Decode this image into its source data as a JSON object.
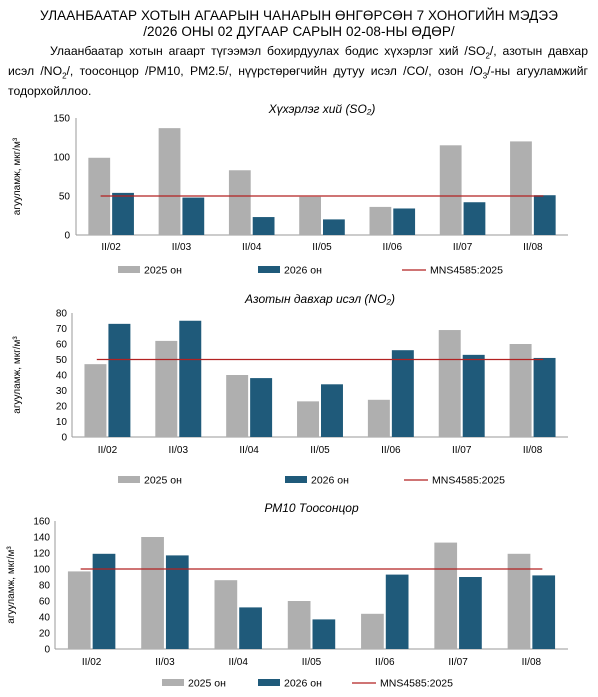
{
  "page": {
    "title_line1": "УЛААНБААТАР ХОТЫН АГААРЫН ЧАНАРЫН ӨНГӨРСӨН 7 ХОНОГИЙН МЭДЭЭ",
    "title_line2": "/2026 ОНЫ 02 ДУГААР САРЫН 02-08-НЫ ӨДӨР/",
    "intro_html": "Улаанбаатар хотын агаарт түгээмэл бохирдуулах бодис хүхэрлэг хий /SO<sub>2</sub>/, азотын давхар исэл /NO<sub>2</sub>/, тоосонцор /PM10, PM2.5/, нүүрстөрөгчийн дутуу исэл /CO/, озон /O<sub>3</sub>/-ны агууламжийг тодорхойллоо."
  },
  "colors": {
    "series_2025": "#afafaf",
    "series_2026": "#1f5a7a",
    "standard": "#b22222"
  },
  "chart_data": [
    {
      "type": "bar",
      "title": "Хүхэрлэг хий (SO₂)",
      "ylabel": "агууламж, мкг/м³",
      "categories": [
        "II/02",
        "II/03",
        "II/04",
        "II/05",
        "II/06",
        "II/07",
        "II/08"
      ],
      "ylim": [
        0,
        150
      ],
      "yticks": [
        0,
        50,
        100,
        150
      ],
      "series": [
        {
          "name": "2025 он",
          "values": [
            99,
            137,
            83,
            49,
            36,
            115,
            120
          ]
        },
        {
          "name": "2026 он",
          "values": [
            54,
            48,
            23,
            20,
            34,
            42,
            51
          ]
        }
      ],
      "standard": {
        "name": "MNS4585:2025",
        "value": 50
      },
      "legend": "bottom"
    },
    {
      "type": "bar",
      "title": "Азотын давхар исэл (NO₂)",
      "ylabel": "агууламж, мкг/м³",
      "categories": [
        "II/02",
        "II/03",
        "II/04",
        "II/05",
        "II/06",
        "II/07",
        "II/08"
      ],
      "ylim": [
        0,
        80
      ],
      "yticks": [
        0,
        10,
        20,
        30,
        40,
        50,
        60,
        70,
        80
      ],
      "series": [
        {
          "name": "2025 он",
          "values": [
            47,
            62,
            40,
            23,
            24,
            69,
            60
          ]
        },
        {
          "name": "2026 он",
          "values": [
            73,
            75,
            38,
            34,
            56,
            53,
            51
          ]
        }
      ],
      "standard": {
        "name": "MNS4585:2025",
        "value": 50
      },
      "legend": "bottom"
    },
    {
      "type": "bar",
      "title": "РМ10 Тоосонцор",
      "ylabel": "агууламж, мкг/м³",
      "categories": [
        "II/02",
        "II/03",
        "II/04",
        "II/05",
        "II/06",
        "II/07",
        "II/08"
      ],
      "ylim": [
        0,
        160
      ],
      "yticks": [
        0,
        20,
        40,
        60,
        80,
        100,
        120,
        140,
        160
      ],
      "series": [
        {
          "name": "2025 он",
          "values": [
            97,
            140,
            86,
            60,
            44,
            133,
            119
          ]
        },
        {
          "name": "2026 он",
          "values": [
            119,
            117,
            52,
            37,
            93,
            90,
            92
          ]
        }
      ],
      "standard": {
        "name": "MNS4585:2025",
        "value": 100
      },
      "legend": "bottom"
    }
  ]
}
